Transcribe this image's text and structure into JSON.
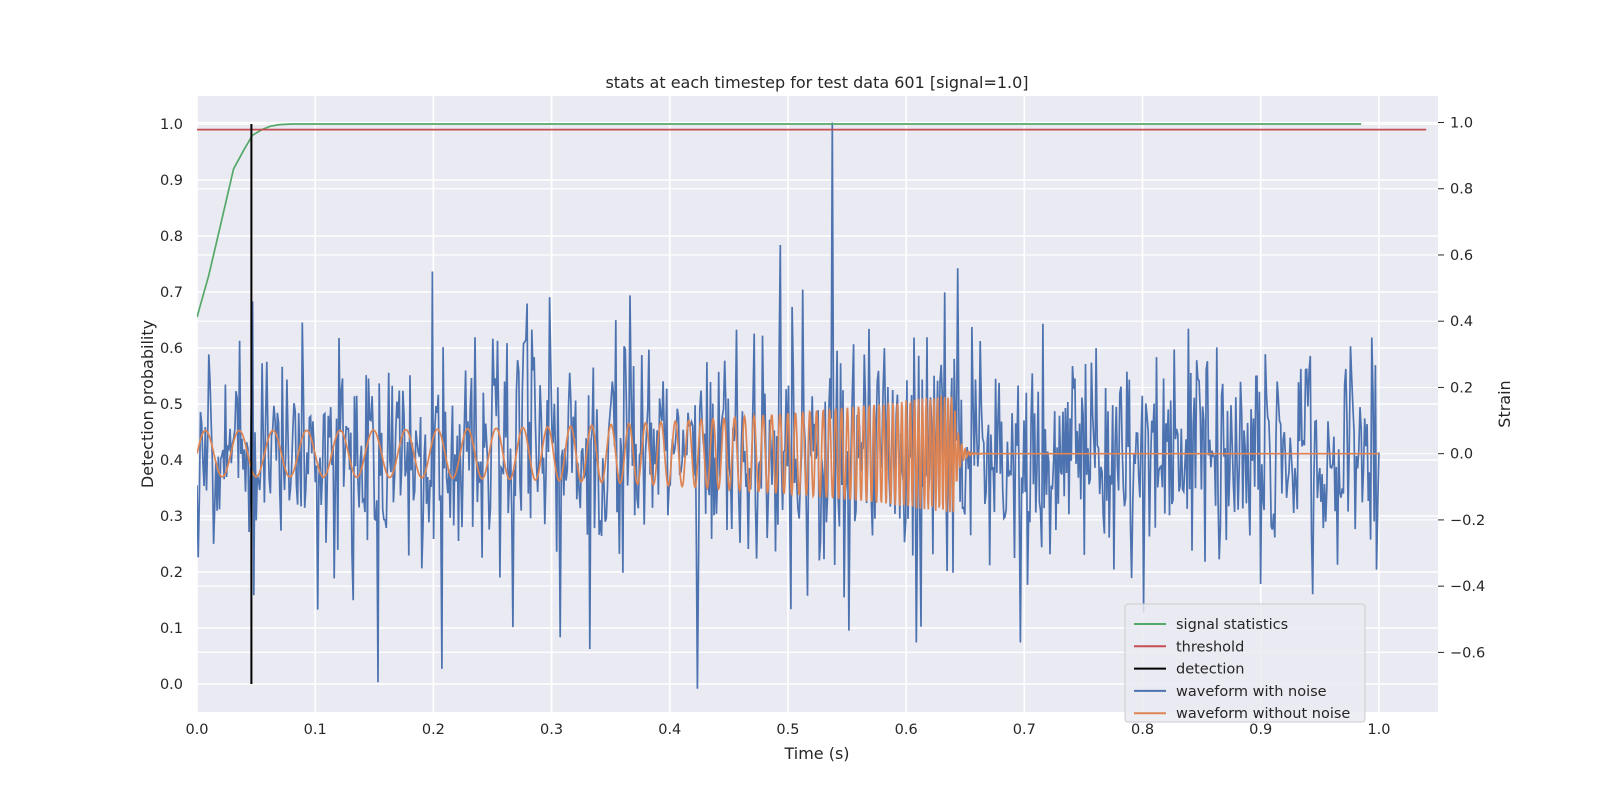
{
  "chart_data": {
    "type": "line",
    "title": "stats at each timestep for test data 601 [signal=1.0]",
    "xlabel": "Time (s)",
    "ylabel": "Detection probability",
    "y2label": "Strain",
    "xlim": [
      0.0,
      1.05
    ],
    "ylim": [
      -0.05,
      1.05
    ],
    "y2lim": [
      -0.78,
      1.08
    ],
    "x_ticks": [
      0.0,
      0.1,
      0.2,
      0.3,
      0.4,
      0.5,
      0.6,
      0.7,
      0.8,
      0.9,
      1.0
    ],
    "x_tick_labels": [
      "0.0",
      "0.1",
      "0.2",
      "0.3",
      "0.4",
      "0.5",
      "0.6",
      "0.7",
      "0.8",
      "0.9",
      "1.0"
    ],
    "y_ticks": [
      0.0,
      0.1,
      0.2,
      0.3,
      0.4,
      0.5,
      0.6,
      0.7,
      0.8,
      0.9,
      1.0
    ],
    "y_tick_labels": [
      "0.0",
      "0.1",
      "0.2",
      "0.3",
      "0.4",
      "0.5",
      "0.6",
      "0.7",
      "0.8",
      "0.9",
      "1.0"
    ],
    "y2_ticks": [
      -0.6,
      -0.4,
      -0.2,
      0.0,
      0.2,
      0.4,
      0.6,
      0.8,
      1.0
    ],
    "y2_tick_labels": [
      "−0.6",
      "−0.4",
      "−0.2",
      "0.0",
      "0.2",
      "0.4",
      "0.6",
      "0.8",
      "1.0"
    ],
    "grid": true,
    "legend_position": "bottom-right",
    "legend": [
      {
        "label": "signal statistics",
        "color": "#55a868"
      },
      {
        "label": "threshold",
        "color": "#c44e52"
      },
      {
        "label": "detection",
        "color": "#000000"
      },
      {
        "label": "waveform with noise",
        "color": "#4c72b0"
      },
      {
        "label": "waveform without noise",
        "color": "#dd8452"
      }
    ],
    "series": [
      {
        "name": "signal statistics",
        "axis": "left",
        "color": "#55a868",
        "x": [
          0.0,
          0.01,
          0.02,
          0.031,
          0.04,
          0.047,
          0.055,
          0.062,
          0.07,
          0.08,
          0.1,
          0.2,
          0.4,
          0.6,
          0.8,
          0.985
        ],
        "y": [
          0.655,
          0.73,
          0.82,
          0.92,
          0.955,
          0.98,
          0.99,
          0.996,
          0.999,
          1.0,
          1.0,
          1.0,
          1.0,
          1.0,
          1.0,
          1.0
        ]
      },
      {
        "name": "threshold",
        "axis": "left",
        "color": "#c44e52",
        "x": [
          0.0,
          1.04
        ],
        "y": [
          0.99,
          0.99
        ]
      },
      {
        "name": "detection",
        "axis": "left",
        "color": "#000000",
        "x": [
          0.046,
          0.046
        ],
        "y": [
          0.0,
          1.0
        ]
      },
      {
        "name": "waveform with noise",
        "axis": "right",
        "color": "#4c72b0",
        "description": "noisy strain samples, ~1000 points over 0-1 s, std approx 0.16",
        "n_points": 1000,
        "noise_std": 0.16,
        "notable_points": [
          {
            "x": 0.047,
            "y": 0.46
          },
          {
            "x": 0.153,
            "y": -0.69
          },
          {
            "x": 0.199,
            "y": 0.55
          },
          {
            "x": 0.207,
            "y": -0.65
          },
          {
            "x": 0.332,
            "y": -0.59
          },
          {
            "x": 0.423,
            "y": -0.71
          },
          {
            "x": 0.493,
            "y": 0.63
          },
          {
            "x": 0.538,
            "y": 1.0
          },
          {
            "x": 0.609,
            "y": -0.57
          },
          {
            "x": 0.644,
            "y": 0.56
          },
          {
            "x": 0.697,
            "y": -0.57
          },
          {
            "x": 0.998,
            "y": -0.35
          }
        ]
      },
      {
        "name": "waveform without noise",
        "axis": "right",
        "color": "#dd8452",
        "description": "inspiral chirp: frequency and amplitude rise until merger near 0.64 s, then ringdown to zero",
        "t_merger": 0.64,
        "amplitude_start": 0.07,
        "amplitude_peak": 0.18,
        "frequency_start_hz": 35,
        "frequency_end_hz": 350,
        "x_end": 1.0
      }
    ]
  }
}
